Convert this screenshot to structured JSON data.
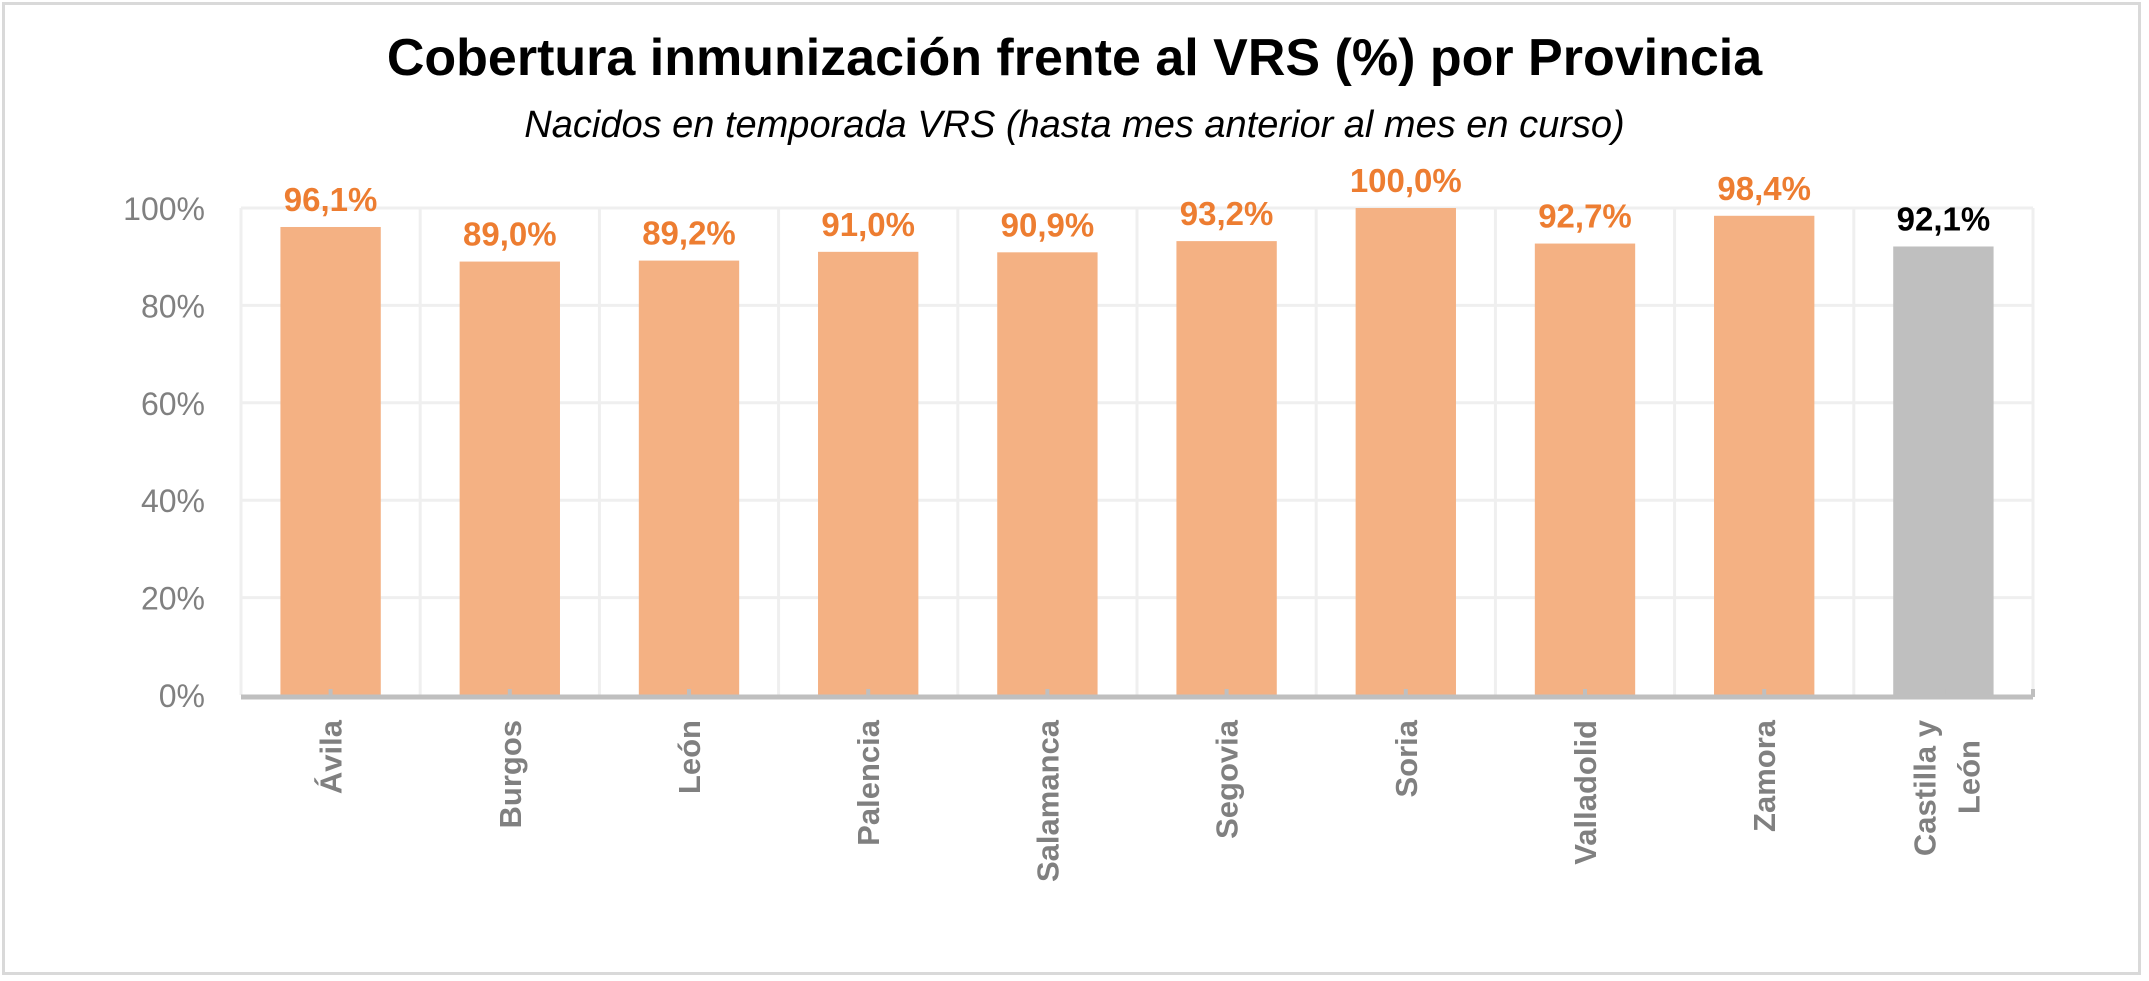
{
  "chart_data": {
    "type": "bar",
    "title": "Cobertura inmunización frente al VRS (%) por Provincia",
    "subtitle": "Nacidos en temporada VRS (hasta mes anterior al mes en curso)",
    "categories": [
      "Ávila",
      "Burgos",
      "León",
      "Palencia",
      "Salamanca",
      "Segovia",
      "Soria",
      "Valladolid",
      "Zamora",
      "Castilla y León"
    ],
    "values": [
      96.1,
      89.0,
      89.2,
      91.0,
      90.9,
      93.2,
      100.0,
      92.7,
      98.4,
      92.1
    ],
    "data_labels": [
      "96,1%",
      "89,0%",
      "89,2%",
      "91,0%",
      "90,9%",
      "93,2%",
      "100,0%",
      "92,7%",
      "98,4%",
      "92,1%"
    ],
    "y_ticks": [
      "0%",
      "20%",
      "40%",
      "60%",
      "80%",
      "100%"
    ],
    "ylim": [
      0,
      100
    ],
    "xlabel": "",
    "ylabel": "",
    "grid": true,
    "legend": "none",
    "colors": {
      "province_bar": "#f4b183",
      "total_bar": "#bfbfbf",
      "province_label": "#ed7d31",
      "total_label": "#000000",
      "axis": "#bfbfbf",
      "tick_text": "#808080"
    }
  }
}
